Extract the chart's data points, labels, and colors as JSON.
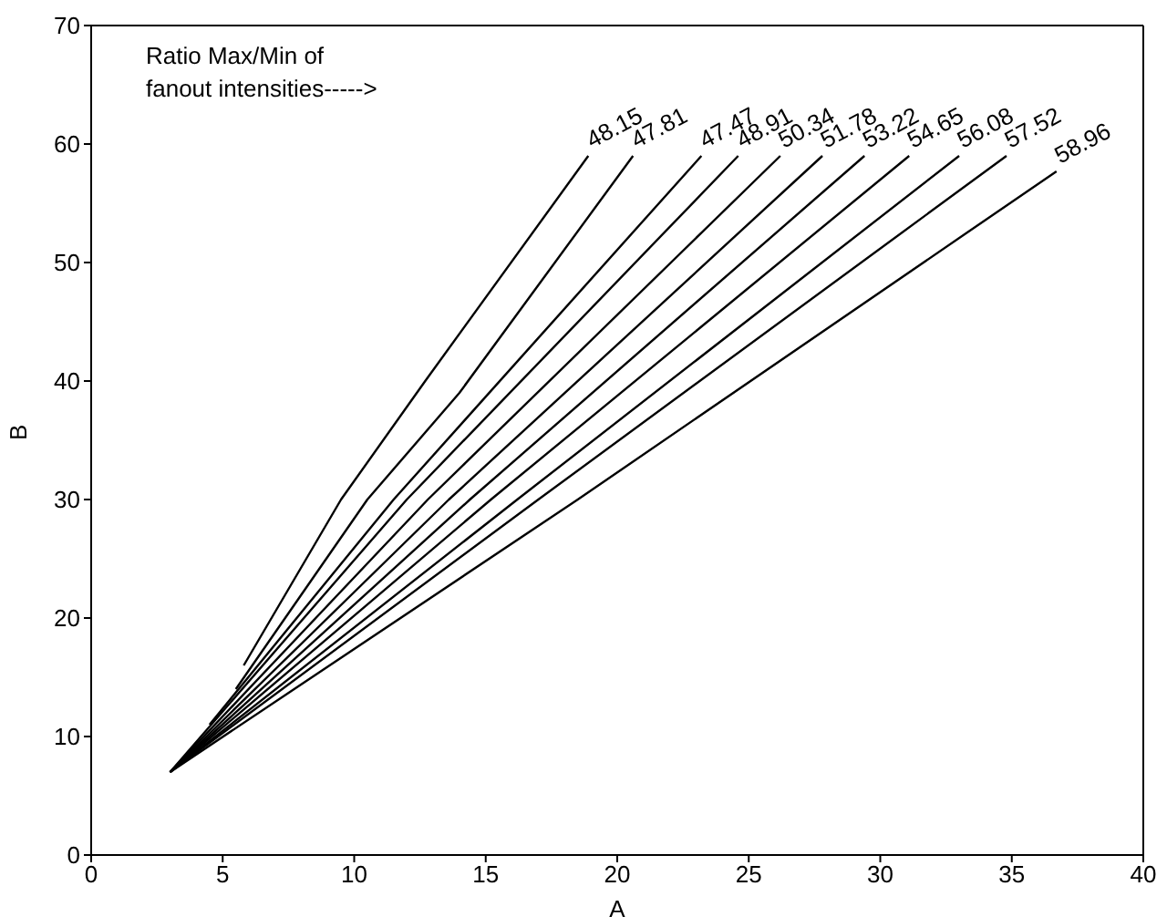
{
  "chart_data": {
    "type": "line",
    "xlabel": "A",
    "ylabel": "B",
    "xlim": [
      0,
      40
    ],
    "ylim": [
      0,
      70
    ],
    "xticks": [
      0,
      5,
      10,
      15,
      20,
      25,
      30,
      35,
      40
    ],
    "yticks": [
      0,
      10,
      20,
      30,
      40,
      50,
      60,
      70
    ],
    "marker": "none",
    "line_style": "solid",
    "annotations": [
      "Ratio Max/Min of fanout intensities----->"
    ],
    "series": [
      {
        "name": "48.15",
        "color": "#000000",
        "x": [
          5.8,
          9.5,
          12.7,
          18.9
        ],
        "values": [
          16,
          30,
          40,
          59
        ]
      },
      {
        "name": "47.81",
        "color": "#000000",
        "x": [
          5.5,
          10.5,
          14,
          20.6
        ],
        "values": [
          14,
          30,
          39,
          59
        ]
      },
      {
        "name": "47.47",
        "color": "#000000",
        "x": [
          4.5,
          11.5,
          23.2
        ],
        "values": [
          11,
          30,
          59
        ]
      },
      {
        "name": "48.91",
        "color": "#000000",
        "x": [
          3,
          12,
          24.6
        ],
        "values": [
          7,
          30,
          59
        ]
      },
      {
        "name": "50.34",
        "color": "#000000",
        "x": [
          3,
          12.8,
          26.2
        ],
        "values": [
          7,
          30,
          59
        ]
      },
      {
        "name": "51.78",
        "color": "#000000",
        "x": [
          3,
          13.6,
          27.8
        ],
        "values": [
          7,
          30,
          59
        ]
      },
      {
        "name": "53.22",
        "color": "#000000",
        "x": [
          3,
          14.4,
          29.4
        ],
        "values": [
          7,
          30,
          59
        ]
      },
      {
        "name": "54.65",
        "color": "#000000",
        "x": [
          3,
          15.2,
          31.1
        ],
        "values": [
          7,
          30,
          59
        ]
      },
      {
        "name": "56.08",
        "color": "#000000",
        "x": [
          3,
          16.2,
          33
        ],
        "values": [
          7,
          30,
          59
        ]
      },
      {
        "name": "57.52",
        "color": "#000000",
        "x": [
          3,
          17,
          34.8
        ],
        "values": [
          7,
          30,
          59
        ]
      },
      {
        "name": "58.96",
        "color": "#000000",
        "x": [
          3,
          18.5,
          36.7
        ],
        "values": [
          7,
          30,
          57.7
        ]
      }
    ]
  }
}
